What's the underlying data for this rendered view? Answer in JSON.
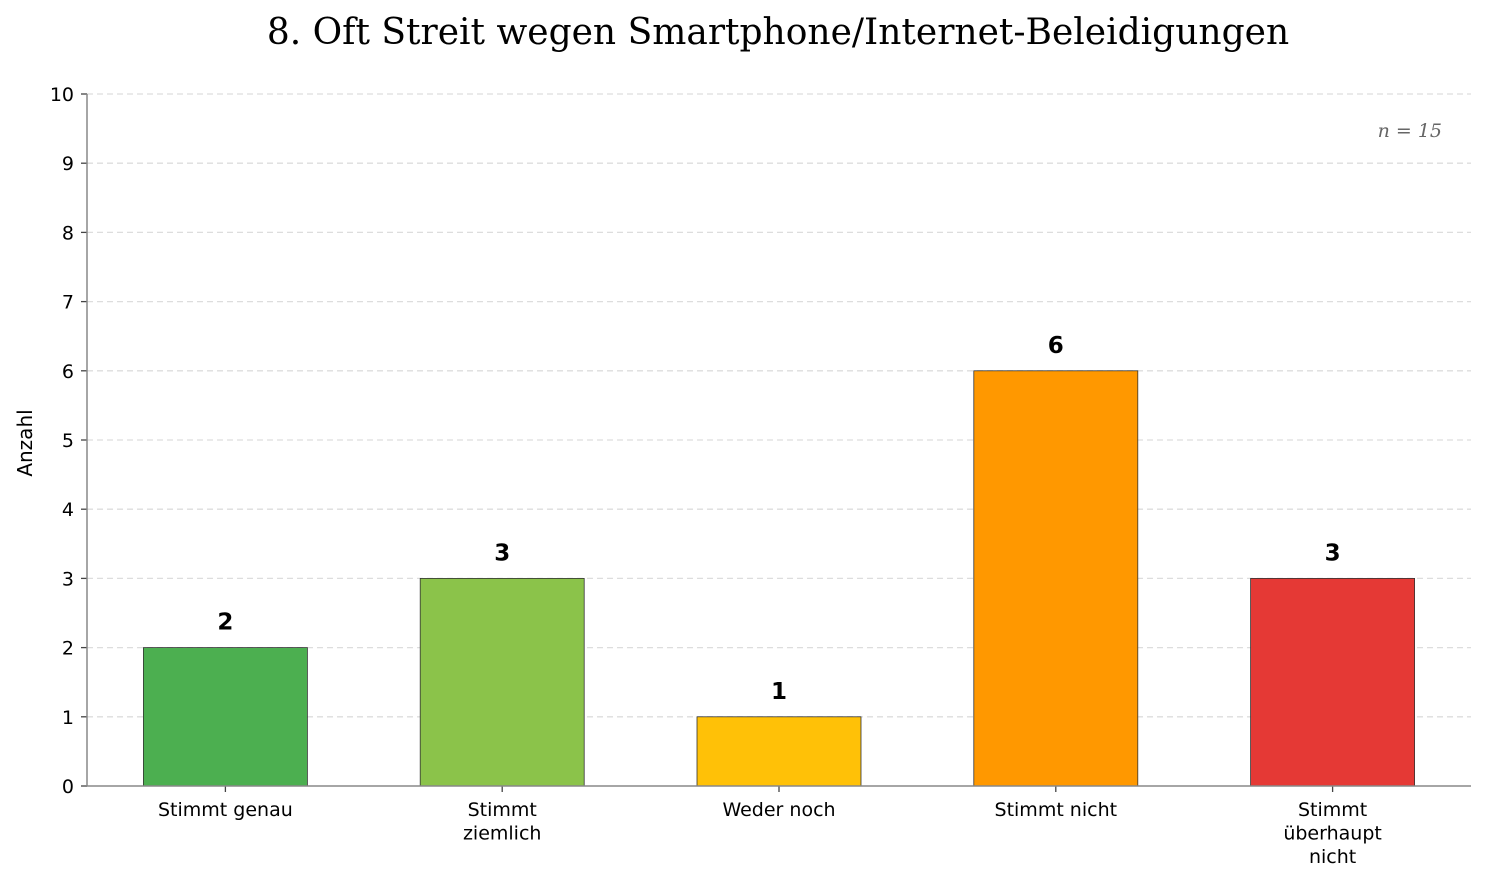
{
  "chart_data": {
    "type": "bar",
    "title": "8. Oft Streit wegen Smartphone/Internet-Beleidigungen",
    "xlabel": "",
    "ylabel": "Anzahl",
    "ylim": [
      0,
      10
    ],
    "yticks": [
      "0",
      "1",
      "2",
      "3",
      "4",
      "5",
      "6",
      "7",
      "8",
      "9",
      "10"
    ],
    "grid": true,
    "annotation": "n = 15",
    "categories": [
      [
        "Stimmt genau"
      ],
      [
        "Stimmt",
        "ziemlich"
      ],
      [
        "Weder noch"
      ],
      [
        "Stimmt nicht"
      ],
      [
        "Stimmt",
        "überhaupt",
        "nicht"
      ]
    ],
    "values": [
      2,
      3,
      1,
      6,
      3
    ],
    "colors": [
      "#4caf50",
      "#8bc34a",
      "#ffc107",
      "#ff9800",
      "#e53935"
    ]
  }
}
